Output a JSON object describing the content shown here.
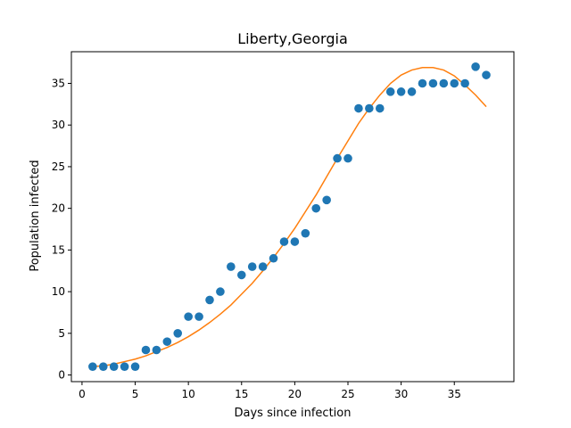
{
  "chart_data": {
    "type": "scatter",
    "title": "Liberty,Georgia",
    "xlabel": "Days since infection",
    "ylabel": "Population infected",
    "xlim": [
      -1,
      40.6
    ],
    "ylim": [
      -0.8,
      38.8
    ],
    "xticks": [
      0,
      5,
      10,
      15,
      20,
      25,
      30,
      35
    ],
    "yticks": [
      0,
      5,
      10,
      15,
      20,
      25,
      30,
      35
    ],
    "grid": false,
    "series": [
      {
        "kind": "scatter",
        "color": "#1f77b4",
        "x": [
          1,
          2,
          3,
          4,
          5,
          6,
          7,
          8,
          9,
          10,
          11,
          12,
          13,
          14,
          15,
          16,
          17,
          18,
          19,
          20,
          21,
          22,
          23,
          24,
          25,
          26,
          27,
          28,
          29,
          30,
          31,
          32,
          33,
          34,
          35,
          36,
          37,
          38
        ],
        "y": [
          1,
          1,
          1,
          1,
          1,
          3,
          3,
          4,
          5,
          7,
          7,
          9,
          10,
          13,
          12,
          13,
          13,
          14,
          16,
          16,
          17,
          20,
          21,
          26,
          26,
          32,
          32,
          32,
          34,
          34,
          34,
          35,
          35,
          35,
          35,
          35,
          37,
          36
        ]
      },
      {
        "kind": "line",
        "color": "#ff7f0e",
        "x": [
          1,
          2,
          3,
          4,
          5,
          6,
          7,
          8,
          9,
          10,
          11,
          12,
          13,
          14,
          15,
          16,
          17,
          18,
          19,
          20,
          21,
          22,
          23,
          24,
          25,
          26,
          27,
          28,
          29,
          30,
          31,
          32,
          33,
          34,
          35,
          36,
          37,
          38
        ],
        "y": [
          1.0,
          1.1,
          1.3,
          1.6,
          1.9,
          2.3,
          2.8,
          3.3,
          3.9,
          4.6,
          5.4,
          6.3,
          7.3,
          8.4,
          9.7,
          11.0,
          12.5,
          14.1,
          15.8,
          17.6,
          19.6,
          21.6,
          23.8,
          26.0,
          28.1,
          30.2,
          32.0,
          33.6,
          35.0,
          36.0,
          36.6,
          36.9,
          36.9,
          36.6,
          35.9,
          34.8,
          33.6,
          32.2
        ]
      }
    ]
  }
}
